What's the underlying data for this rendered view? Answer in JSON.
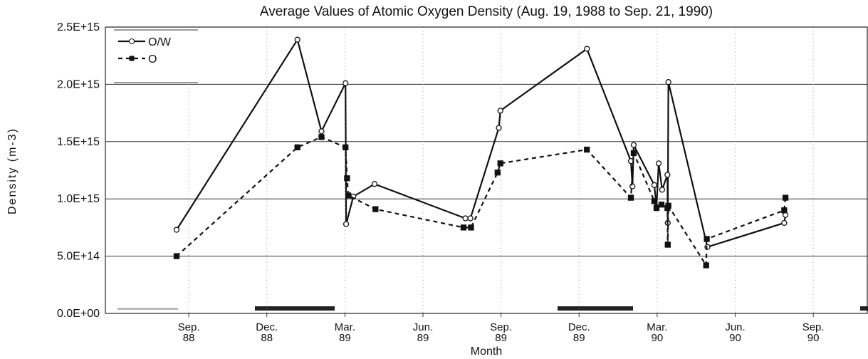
{
  "chart_data": {
    "type": "line",
    "title": "Average Values of Atomic Oxygen Density (Aug. 19, 1988 to Sep. 21, 1990)",
    "x_label": "Month",
    "y_label": "Density (m-3)",
    "xlim": [
      1988.4,
      1990.84
    ],
    "ylim": [
      0,
      2500000000000000.0
    ],
    "xticks": [
      {
        "value": 1988.667,
        "label": "Sep. 88"
      },
      {
        "value": 1988.917,
        "label": "Dec. 88"
      },
      {
        "value": 1989.167,
        "label": "Mar. 89"
      },
      {
        "value": 1989.417,
        "label": "Jun. 89"
      },
      {
        "value": 1989.667,
        "label": "Sep. 89"
      },
      {
        "value": 1989.917,
        "label": "Dec. 89"
      },
      {
        "value": 1990.167,
        "label": "Mar. 90"
      },
      {
        "value": 1990.417,
        "label": "Jun. 90"
      },
      {
        "value": 1990.667,
        "label": "Sep. 90"
      }
    ],
    "yticks": [
      {
        "value": 0,
        "label": "0.0E+00"
      },
      {
        "value": 500000000000000.0,
        "label": "5.0E+14"
      },
      {
        "value": 1000000000000000.0,
        "label": "1.0E+15"
      },
      {
        "value": 1500000000000000.0,
        "label": "1.5E+15"
      },
      {
        "value": 2000000000000000.0,
        "label": "2.0E+15"
      },
      {
        "value": 2500000000000000.0,
        "label": "2.5E+15"
      }
    ],
    "grid": true,
    "legend": "top-left",
    "series": [
      {
        "name": "O/W",
        "color": "#111111",
        "line_style": "solid",
        "marker": "circle",
        "x": [
          1988.628,
          1989.015,
          1989.092,
          1989.169,
          1989.171,
          1989.194,
          1989.262,
          1989.553,
          1989.569,
          1989.66,
          1989.665,
          1989.942,
          1990.083,
          1990.088,
          1990.092,
          1990.158,
          1990.165,
          1990.172,
          1990.183,
          1990.2,
          1990.201,
          1990.203,
          1990.328,
          1990.574,
          1990.578
        ],
        "values": [
          730000000000000.0,
          2390000000000000.0,
          1590000000000000.0,
          2010000000000000.0,
          780000000000000.0,
          1020000000000000.0,
          1130000000000000.0,
          830000000000000.0,
          830000000000000.0,
          1620000000000000.0,
          1770000000000000.0,
          2310000000000000.0,
          1330000000000000.0,
          1110000000000000.0,
          1470000000000000.0,
          1120000000000000.0,
          930000000000000.0,
          1310000000000000.0,
          1080000000000000.0,
          1210000000000000.0,
          790000000000000.0,
          2020000000000000.0,
          580000000000000.0,
          790000000000000.0,
          860000000000000.0
        ]
      },
      {
        "name": "O",
        "color": "#111111",
        "line_style": "dashed",
        "marker": "square",
        "x": [
          1988.628,
          1989.015,
          1989.092,
          1989.169,
          1989.174,
          1989.178,
          1989.265,
          1989.547,
          1989.571,
          1989.656,
          1989.665,
          1989.942,
          1990.083,
          1990.092,
          1990.158,
          1990.165,
          1990.181,
          1990.2,
          1990.201,
          1990.203,
          1990.324,
          1990.326,
          1990.574,
          1990.578
        ],
        "values": [
          500000000000000.0,
          1450000000000000.0,
          1540000000000000.0,
          1450000000000000.0,
          1180000000000000.0,
          1030000000000000.0,
          910000000000000.0,
          750000000000000.0,
          750000000000000.0,
          1230000000000000.0,
          1310000000000000.0,
          1430000000000000.0,
          1010000000000000.0,
          1400000000000000.0,
          980000000000000.0,
          920000000000000.0,
          950000000000000.0,
          920000000000000.0,
          600000000000000.0,
          940000000000000.0,
          420000000000000.0,
          650000000000000.0,
          900000000000000.0,
          1010000000000000.0
        ]
      }
    ]
  }
}
